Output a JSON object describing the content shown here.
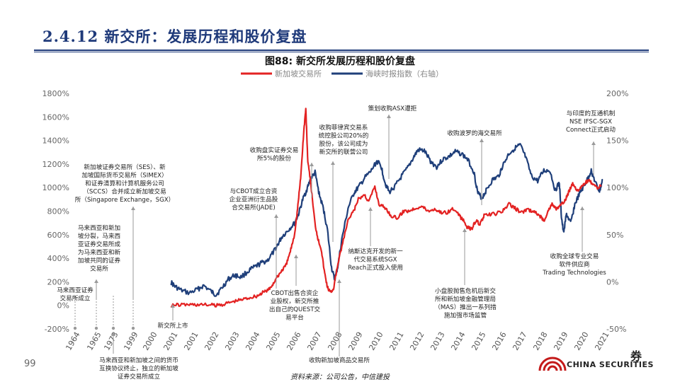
{
  "slide": {
    "title": "2.4.12 新交所：发展历程和股价复盘",
    "page_number": "99",
    "source": "资料来源：公司公告，中信建投",
    "logo_text": "CHINA SECURITIES",
    "logo_char": "券"
  },
  "chart_data": {
    "type": "line",
    "title": "图88: 新交所发展历程和股价复盘",
    "series": [
      {
        "name": "新加坡交易所",
        "color": "#e32222",
        "axis": "left",
        "points": [
          [
            2000.9,
            1
          ],
          [
            2001.3,
            5
          ],
          [
            2001.8,
            8
          ],
          [
            2002.2,
            6
          ],
          [
            2002.7,
            5
          ],
          [
            2003.1,
            0
          ],
          [
            2003.5,
            12
          ],
          [
            2003.9,
            32
          ],
          [
            2004.3,
            48
          ],
          [
            2004.7,
            66
          ],
          [
            2005.1,
            82
          ],
          [
            2005.4,
            112
          ],
          [
            2005.7,
            140
          ],
          [
            2005.9,
            195
          ],
          [
            2006.1,
            250
          ],
          [
            2006.3,
            300
          ],
          [
            2006.5,
            342
          ],
          [
            2006.7,
            460
          ],
          [
            2006.9,
            600
          ],
          [
            2007.05,
            820
          ],
          [
            2007.2,
            1080
          ],
          [
            2007.35,
            1470
          ],
          [
            2007.45,
            1670
          ],
          [
            2007.55,
            1220
          ],
          [
            2007.7,
            1020
          ],
          [
            2007.9,
            690
          ],
          [
            2008.05,
            560
          ],
          [
            2008.2,
            480
          ],
          [
            2008.35,
            290
          ],
          [
            2008.5,
            155
          ],
          [
            2008.65,
            110
          ],
          [
            2008.8,
            145
          ],
          [
            2008.95,
            300
          ],
          [
            2009.2,
            500
          ],
          [
            2009.5,
            720
          ],
          [
            2009.8,
            810
          ],
          [
            2010.0,
            900
          ],
          [
            2010.3,
            940
          ],
          [
            2010.5,
            880
          ],
          [
            2010.8,
            1010
          ],
          [
            2011.0,
            860
          ],
          [
            2011.3,
            830
          ],
          [
            2011.6,
            760
          ],
          [
            2011.9,
            740
          ],
          [
            2012.2,
            800
          ],
          [
            2012.5,
            805
          ],
          [
            2012.8,
            830
          ],
          [
            2013.1,
            840
          ],
          [
            2013.4,
            800
          ],
          [
            2013.7,
            820
          ],
          [
            2014.0,
            790
          ],
          [
            2014.3,
            790
          ],
          [
            2014.6,
            820
          ],
          [
            2014.9,
            760
          ],
          [
            2015.1,
            720
          ],
          [
            2015.3,
            660
          ],
          [
            2015.5,
            650
          ],
          [
            2015.7,
            720
          ],
          [
            2015.9,
            690
          ],
          [
            2016.1,
            760
          ],
          [
            2016.4,
            770
          ],
          [
            2016.7,
            780
          ],
          [
            2017.0,
            800
          ],
          [
            2017.3,
            860
          ],
          [
            2017.6,
            825
          ],
          [
            2017.9,
            790
          ],
          [
            2018.2,
            810
          ],
          [
            2018.5,
            800
          ],
          [
            2018.8,
            760
          ],
          [
            2019.0,
            720
          ],
          [
            2019.2,
            800
          ],
          [
            2019.4,
            860
          ],
          [
            2019.6,
            820
          ],
          [
            2019.8,
            845
          ],
          [
            2020.0,
            880
          ],
          [
            2020.2,
            960
          ],
          [
            2020.4,
            1040
          ],
          [
            2020.6,
            980
          ],
          [
            2020.8,
            995
          ],
          [
            2021.0,
            1040
          ],
          [
            2021.2,
            1060
          ],
          [
            2021.4,
            1020
          ],
          [
            2021.6,
            1000
          ],
          [
            2021.8,
            1015
          ]
        ]
      },
      {
        "name": "海峡时报指数（右轴）",
        "color": "#1f3f7a",
        "axis": "right",
        "points": [
          [
            2000.9,
            0
          ],
          [
            2001.1,
            -5
          ],
          [
            2001.4,
            -9
          ],
          [
            2001.8,
            -12
          ],
          [
            2002.2,
            -8
          ],
          [
            2002.5,
            -4
          ],
          [
            2002.9,
            -11
          ],
          [
            2003.1,
            -14
          ],
          [
            2003.4,
            -6
          ],
          [
            2003.7,
            3
          ],
          [
            2004.0,
            7
          ],
          [
            2004.3,
            5
          ],
          [
            2004.7,
            12
          ],
          [
            2005.0,
            16
          ],
          [
            2005.3,
            20
          ],
          [
            2005.6,
            23
          ],
          [
            2005.9,
            32
          ],
          [
            2006.1,
            40
          ],
          [
            2006.3,
            48
          ],
          [
            2006.6,
            55
          ],
          [
            2006.9,
            62
          ],
          [
            2007.1,
            72
          ],
          [
            2007.3,
            87
          ],
          [
            2007.5,
            98
          ],
          [
            2007.7,
            110
          ],
          [
            2007.9,
            116
          ],
          [
            2008.1,
            93
          ],
          [
            2008.3,
            78
          ],
          [
            2008.5,
            55
          ],
          [
            2008.7,
            15
          ],
          [
            2008.85,
            2
          ],
          [
            2009.0,
            16
          ],
          [
            2009.2,
            45
          ],
          [
            2009.5,
            78
          ],
          [
            2009.8,
            95
          ],
          [
            2010.0,
            100
          ],
          [
            2010.3,
            110
          ],
          [
            2010.6,
            117
          ],
          [
            2010.9,
            128
          ],
          [
            2011.1,
            123
          ],
          [
            2011.3,
            105
          ],
          [
            2011.5,
            95
          ],
          [
            2011.8,
            102
          ],
          [
            2012.1,
            112
          ],
          [
            2012.4,
            121
          ],
          [
            2012.7,
            133
          ],
          [
            2012.9,
            140
          ],
          [
            2013.2,
            139
          ],
          [
            2013.5,
            128
          ],
          [
            2013.8,
            122
          ],
          [
            2014.1,
            130
          ],
          [
            2014.4,
            133
          ],
          [
            2014.7,
            138
          ],
          [
            2015.0,
            136
          ],
          [
            2015.3,
            130
          ],
          [
            2015.6,
            117
          ],
          [
            2015.8,
            94
          ],
          [
            2016.0,
            89
          ],
          [
            2016.2,
            97
          ],
          [
            2016.5,
            108
          ],
          [
            2016.8,
            112
          ],
          [
            2017.0,
            123
          ],
          [
            2017.3,
            136
          ],
          [
            2017.6,
            142
          ],
          [
            2017.85,
            145
          ],
          [
            2018.1,
            133
          ],
          [
            2018.4,
            112
          ],
          [
            2018.7,
            107
          ],
          [
            2019.0,
            118
          ],
          [
            2019.3,
            118
          ],
          [
            2019.55,
            97
          ],
          [
            2019.75,
            105
          ],
          [
            2019.85,
            70
          ],
          [
            2019.95,
            52
          ],
          [
            2020.1,
            72
          ],
          [
            2020.3,
            62
          ],
          [
            2020.5,
            82
          ],
          [
            2020.7,
            92
          ],
          [
            2020.9,
            100
          ],
          [
            2021.1,
            108
          ],
          [
            2021.3,
            118
          ],
          [
            2021.5,
            105
          ],
          [
            2021.7,
            96
          ],
          [
            2021.85,
            108
          ]
        ]
      }
    ],
    "x_tick_labels": [
      "1964",
      "1965",
      "1973",
      "1999",
      "2000",
      "2001",
      "2001",
      "2002",
      "2003",
      "2004",
      "2005",
      "2006",
      "2007",
      "2008",
      "2009",
      "2010",
      "2011",
      "2012",
      "2013",
      "2014",
      "2015",
      "2016",
      "2017",
      "2018",
      "2019",
      "2020",
      "2021"
    ],
    "left_axis": {
      "tick_labels": [
        "1800%",
        "1600%",
        "1400%",
        "1200%",
        "1000%",
        "800%",
        "600%",
        "400%",
        "200%",
        "0%",
        "-200%"
      ],
      "range": [
        -200,
        1800
      ]
    },
    "right_axis": {
      "tick_labels": [
        "200%",
        "150%",
        "100%",
        "50%",
        "0%",
        "-50%"
      ],
      "range": [
        -50,
        200
      ]
    },
    "annotations": [
      {
        "text": "新加坡证券交易所（SES）、新\n加坡国际货币交易所（SIMEX）\n和证券清算和计算机服务公司\n（SCCS）合并成立新加坡交易\n所（Singapore Exchange，SGX）",
        "at": "1999"
      },
      {
        "text": "马来西亚和新加\n坡分裂，马来西\n亚证券交易所成\n为马来西亚和新\n加坡共同的证券\n交易所",
        "at": "1965"
      },
      {
        "text": "马来西亚证券\n交易所成立",
        "at": "1964"
      },
      {
        "text": "马来西亚和新加坡之间的货币\n互换协议终止，独立的新加坡\n证券交易所成立",
        "at": "1973"
      },
      {
        "text": "新交所上市",
        "at": "2000"
      },
      {
        "text": "与CBOT成立合资\n企业亚洲衍生品股\n合交易所(JADE)",
        "at": "2005"
      },
      {
        "text": "收购盘实证券交易\n所5%的股份",
        "at": "2006"
      },
      {
        "text": "收购菲律宾交易系\n统控股公司20%的\n股份，该公司成为\n新交所的联营公司",
        "at": "2007"
      },
      {
        "text": "CBOT出售合资企\n业股权，新交所推\n出自己的QUEST交\n易平台",
        "at": "2006"
      },
      {
        "text": "策划收购ASX遭拒",
        "at": "2010"
      },
      {
        "text": "纳斯达克开发的新一\n代交易系统SGX\nReach正式投入使用",
        "at": "2009"
      },
      {
        "text": "收购新加坡商品交易所",
        "at": "2008"
      },
      {
        "text": "收购波罗的海交易所",
        "at": "2016"
      },
      {
        "text": "小盘股抛售危机后新交\n所和新加坡金融管理局\n（MAS）推出一系列措\n施加强市场监管",
        "at": "2014"
      },
      {
        "text": "与印度的互通机制\nNSE IFSC-SGX\nConnect正式启动",
        "at": "2020"
      },
      {
        "text": "收购全球专业交易\n软件供应商\nTrading Technologies",
        "at": "2020"
      }
    ]
  }
}
